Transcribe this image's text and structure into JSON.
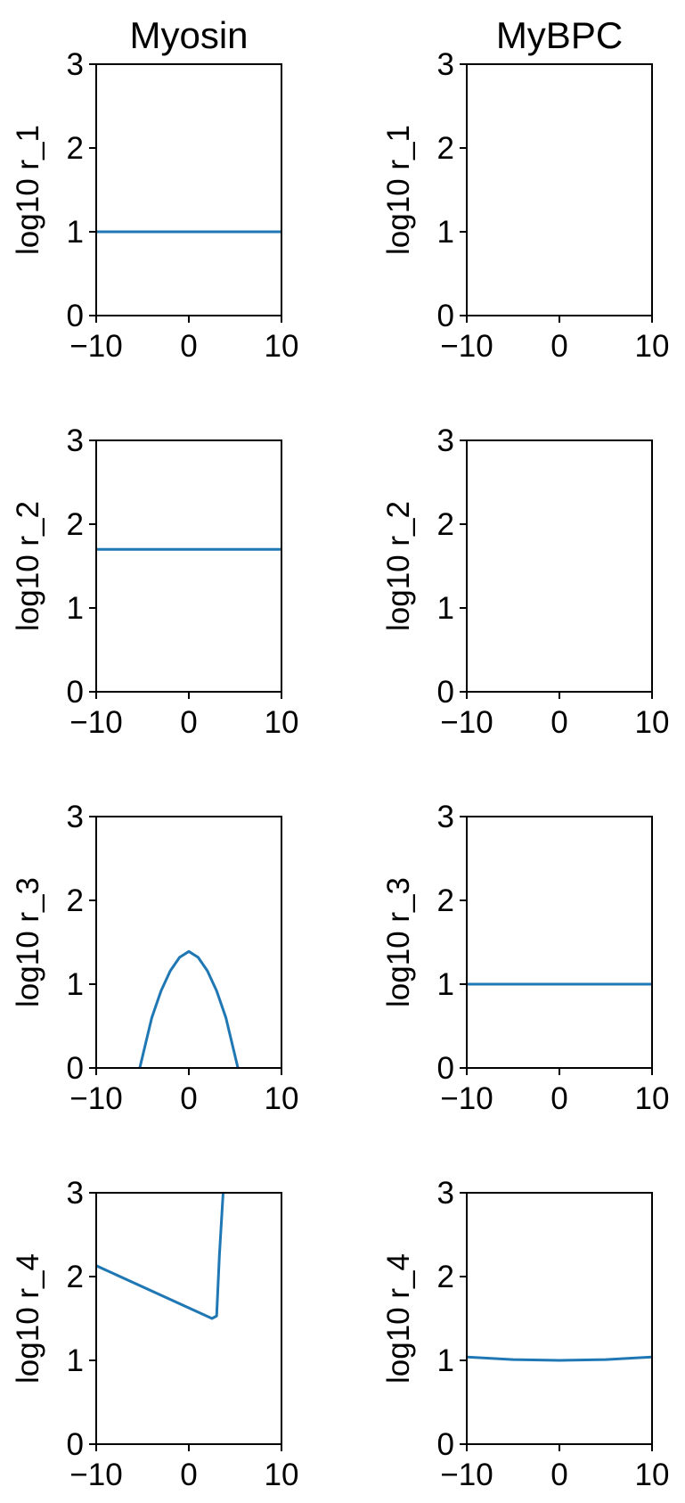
{
  "chart_data": [
    {
      "type": "line",
      "column_title": "Myosin",
      "ylabel": "log10 r_1",
      "xlim": [
        -10,
        10
      ],
      "ylim": [
        0,
        3
      ],
      "xticks": [
        -10,
        0,
        10
      ],
      "yticks": [
        0,
        1,
        2,
        3
      ],
      "series": [
        {
          "x": [
            -10,
            10
          ],
          "y": [
            1.0,
            1.0
          ]
        }
      ]
    },
    {
      "type": "line",
      "column_title": "MyBPC",
      "ylabel": "log10 r_1",
      "xlim": [
        -10,
        10
      ],
      "ylim": [
        0,
        3
      ],
      "xticks": [
        -10,
        0,
        10
      ],
      "yticks": [
        0,
        1,
        2,
        3
      ],
      "series": []
    },
    {
      "type": "line",
      "column_title": "",
      "ylabel": "log10 r_2",
      "xlim": [
        -10,
        10
      ],
      "ylim": [
        0,
        3
      ],
      "xticks": [
        -10,
        0,
        10
      ],
      "yticks": [
        0,
        1,
        2,
        3
      ],
      "series": [
        {
          "x": [
            -10,
            10
          ],
          "y": [
            1.7,
            1.7
          ]
        }
      ]
    },
    {
      "type": "line",
      "column_title": "",
      "ylabel": "log10 r_2",
      "xlim": [
        -10,
        10
      ],
      "ylim": [
        0,
        3
      ],
      "xticks": [
        -10,
        0,
        10
      ],
      "yticks": [
        0,
        1,
        2,
        3
      ],
      "series": []
    },
    {
      "type": "line",
      "column_title": "",
      "ylabel": "log10 r_3",
      "xlim": [
        -10,
        10
      ],
      "ylim": [
        0,
        3
      ],
      "xticks": [
        -10,
        0,
        10
      ],
      "yticks": [
        0,
        1,
        2,
        3
      ],
      "series": [
        {
          "x": [
            -5.3,
            -4,
            -3,
            -2,
            -1,
            0,
            1,
            2,
            3,
            4,
            5.3
          ],
          "y": [
            0.0,
            0.6,
            0.92,
            1.16,
            1.32,
            1.39,
            1.32,
            1.16,
            0.92,
            0.6,
            0.0
          ]
        }
      ]
    },
    {
      "type": "line",
      "column_title": "",
      "ylabel": "log10 r_3",
      "xlim": [
        -10,
        10
      ],
      "ylim": [
        0,
        3
      ],
      "xticks": [
        -10,
        0,
        10
      ],
      "yticks": [
        0,
        1,
        2,
        3
      ],
      "series": [
        {
          "x": [
            -10,
            10
          ],
          "y": [
            1.0,
            1.0
          ]
        }
      ]
    },
    {
      "type": "line",
      "column_title": "",
      "ylabel": "log10 r_4",
      "xlim": [
        -10,
        10
      ],
      "ylim": [
        0,
        3
      ],
      "xticks": [
        -10,
        0,
        10
      ],
      "yticks": [
        0,
        1,
        2,
        3
      ],
      "series": [
        {
          "x": [
            -10,
            2.5,
            3.0,
            3.3,
            3.7
          ],
          "y": [
            2.13,
            1.5,
            1.53,
            2.25,
            3.0
          ]
        }
      ]
    },
    {
      "type": "line",
      "column_title": "",
      "ylabel": "log10 r_4",
      "xlim": [
        -10,
        10
      ],
      "ylim": [
        0,
        3
      ],
      "xticks": [
        -10,
        0,
        10
      ],
      "yticks": [
        0,
        1,
        2,
        3
      ],
      "series": [
        {
          "x": [
            -10,
            -5,
            0,
            5,
            10
          ],
          "y": [
            1.04,
            1.01,
            1.0,
            1.01,
            1.04
          ]
        }
      ]
    }
  ],
  "colors": {
    "line": "#1f77b4",
    "axes": "#000000",
    "text": "#000000"
  }
}
